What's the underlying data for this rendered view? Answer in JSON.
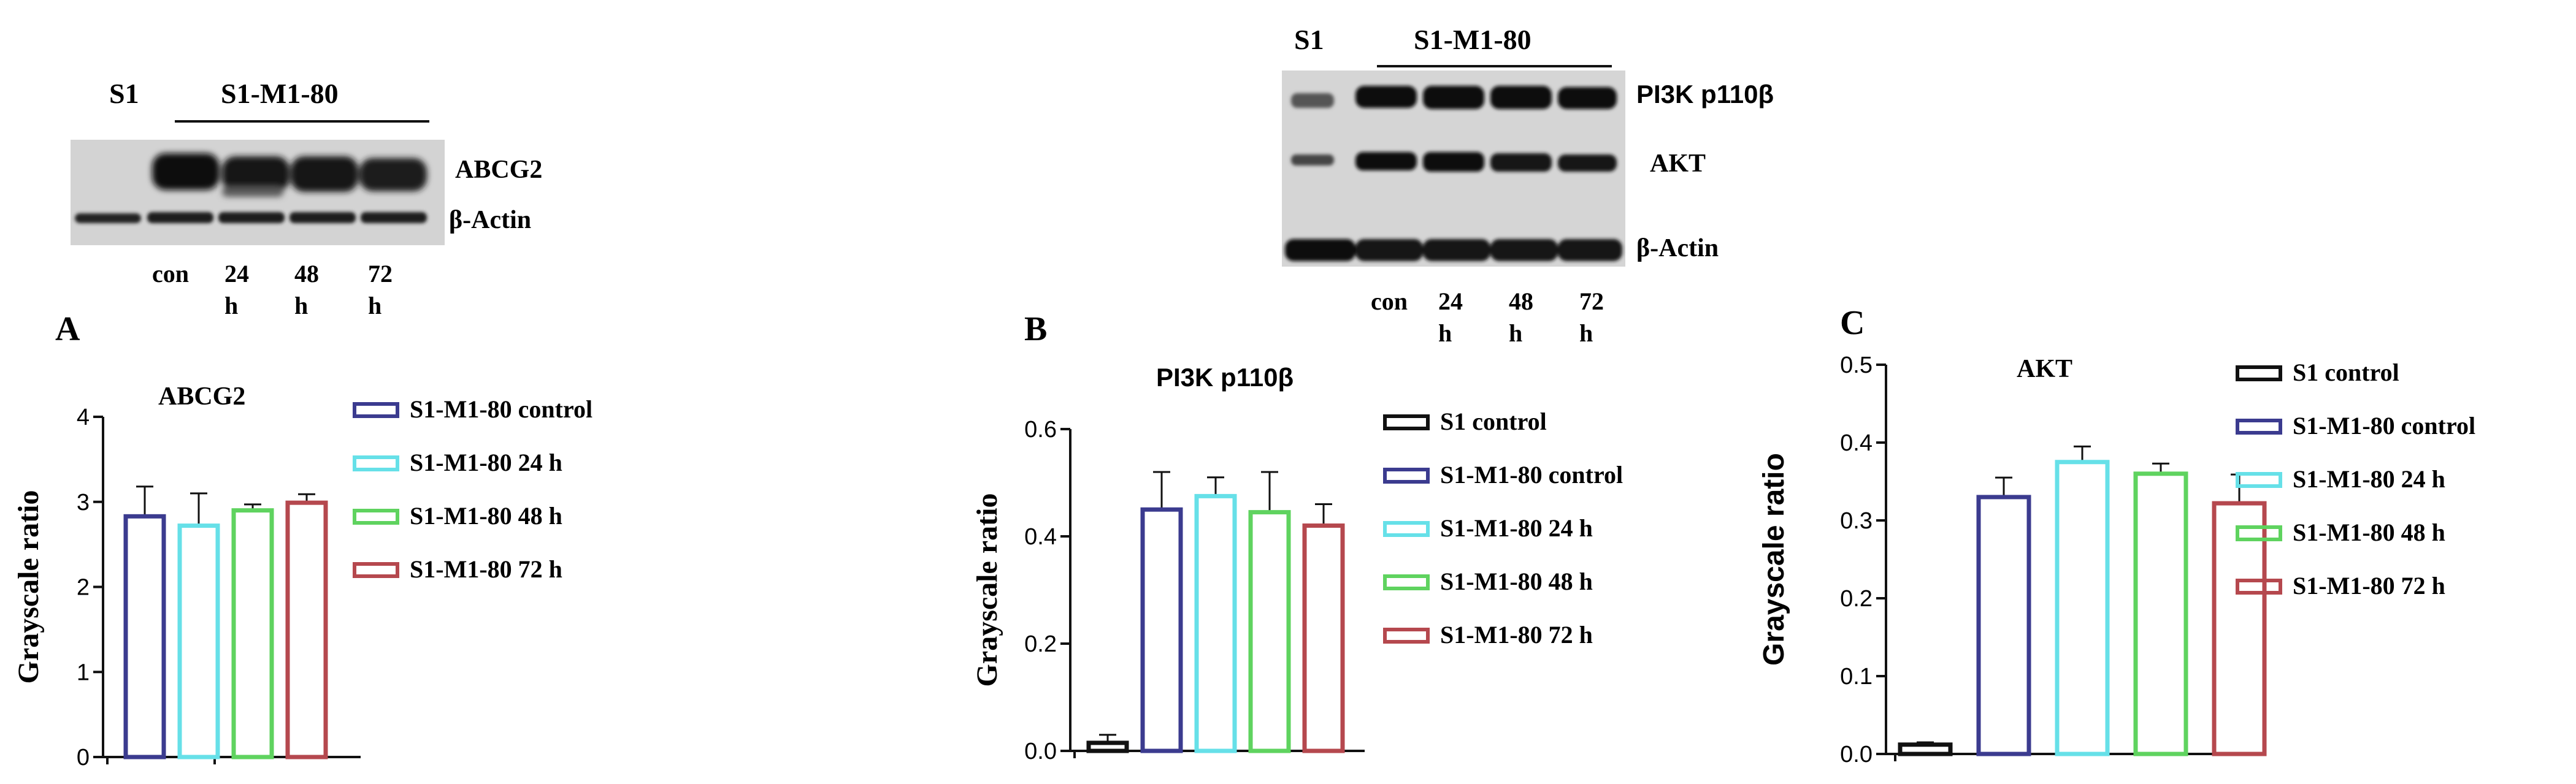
{
  "blots": [
    {
      "id": "blot1",
      "group_left": "S1",
      "group_right": "S1-M1-80",
      "proteins": [
        "ABCG2",
        "β-Actin"
      ],
      "lanes": [
        "con",
        "24\nh",
        "48\nh",
        "72\nh"
      ]
    },
    {
      "id": "blot2",
      "group_left": "S1",
      "group_right": "S1-M1-80",
      "proteins": [
        "PI3K p110β",
        "AKT",
        "β-Actin"
      ],
      "lanes": [
        "con",
        "24\nh",
        "48\nh",
        "72\nh"
      ]
    }
  ],
  "colors": {
    "S1 control": "#111111",
    "S1-M1-80 control": "#3b3b8f",
    "S1-M1-80  24 h": "#66e0e8",
    "S1-M1-80 48 h": "#5fd35f",
    "S1-M1-80 72 h": "#b5484e"
  },
  "chart_data": [
    {
      "panel": "A",
      "type": "bar",
      "title": "ABCG2",
      "ylabel": "Grayscale ratio",
      "ylim": [
        0,
        4
      ],
      "yticks": [
        0,
        1,
        2,
        3,
        4
      ],
      "series": [
        {
          "name": "S1-M1-80 control",
          "value": 2.83,
          "error": 0.35
        },
        {
          "name": "S1-M1-80  24 h",
          "value": 2.72,
          "error": 0.38
        },
        {
          "name": "S1-M1-80 48 h",
          "value": 2.9,
          "error": 0.07
        },
        {
          "name": "S1-M1-80 72 h",
          "value": 2.99,
          "error": 0.1
        }
      ]
    },
    {
      "panel": "B",
      "type": "bar",
      "title": "PI3K p110β",
      "ylabel": "Grayscale ratio",
      "ylim": [
        0,
        0.6
      ],
      "yticks": [
        0.0,
        0.2,
        0.4,
        0.6
      ],
      "series": [
        {
          "name": "S1 control",
          "value": 0.015,
          "error": 0.015
        },
        {
          "name": "S1-M1-80 control",
          "value": 0.45,
          "error": 0.07
        },
        {
          "name": "S1-M1-80  24 h",
          "value": 0.475,
          "error": 0.035
        },
        {
          "name": "S1-M1-80 48 h",
          "value": 0.445,
          "error": 0.075
        },
        {
          "name": "S1-M1-80 72 h",
          "value": 0.42,
          "error": 0.04
        }
      ]
    },
    {
      "panel": "C",
      "type": "bar",
      "title": "AKT",
      "ylabel": "Grayscale ratio",
      "ylim": [
        0,
        0.5
      ],
      "yticks": [
        0.0,
        0.1,
        0.2,
        0.3,
        0.4,
        0.5
      ],
      "series": [
        {
          "name": "S1 control",
          "value": 0.012,
          "error": 0.003
        },
        {
          "name": "S1-M1-80 control",
          "value": 0.33,
          "error": 0.025
        },
        {
          "name": "S1-M1-80  24 h",
          "value": 0.375,
          "error": 0.02
        },
        {
          "name": "S1-M1-80 48 h",
          "value": 0.36,
          "error": 0.013
        },
        {
          "name": "S1-M1-80 72 h",
          "value": 0.322,
          "error": 0.037
        }
      ]
    }
  ]
}
